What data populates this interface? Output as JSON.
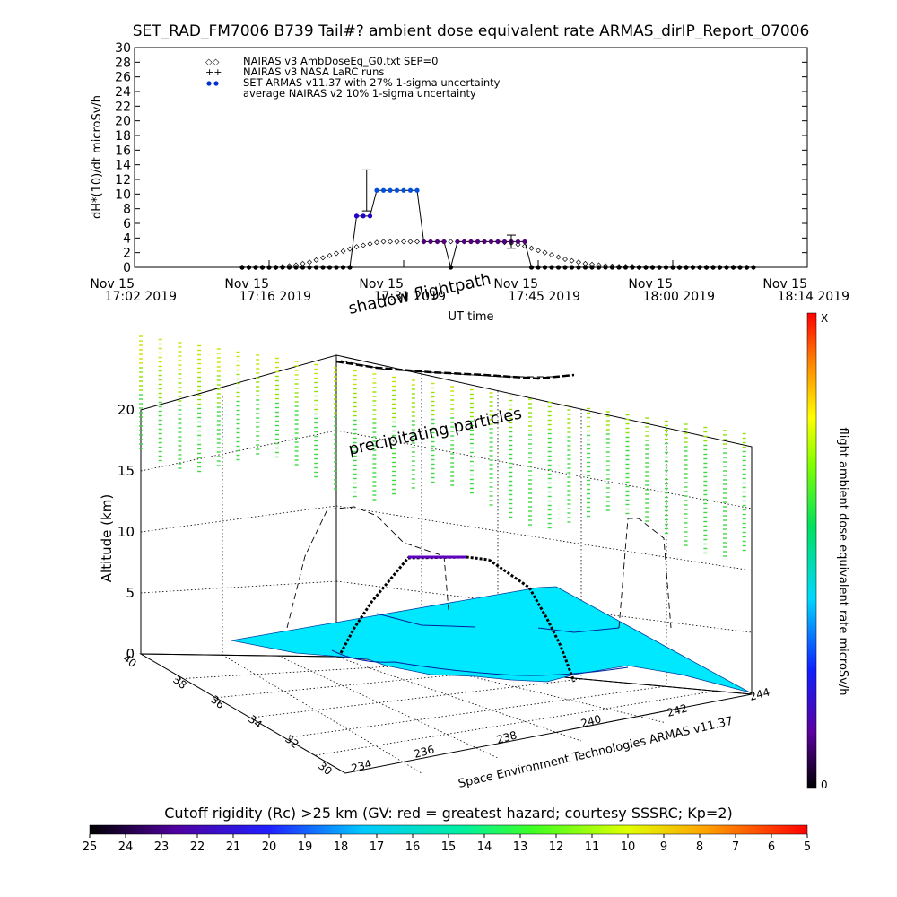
{
  "title": "SET_RAD_FM7006  B739 Tail#? ambient dose equivalent rate ARMAS_dirIP_Report_07006",
  "chart_data": [
    {
      "type": "line",
      "ylabel": "dH*(10)/dt microSv/h",
      "xlabel": "UT time",
      "ylim": [
        0,
        30
      ],
      "yticks": [
        0,
        2,
        4,
        6,
        8,
        10,
        12,
        14,
        16,
        18,
        20,
        22,
        24,
        26,
        28,
        30
      ],
      "xticks": [
        {
          "l1": "Nov 15",
          "l2": "17:02 2019"
        },
        {
          "l1": "Nov 15",
          "l2": "17:16 2019"
        },
        {
          "l1": "Nov 15",
          "l2": "17:31 2019"
        },
        {
          "l1": "Nov 15",
          "l2": "17:45 2019"
        },
        {
          "l1": "Nov 15",
          "l2": "18:00 2019"
        },
        {
          "l1": "Nov 15",
          "l2": "18:14 2019"
        }
      ],
      "legend": [
        {
          "label": "NAIRAS v3 AmbDoseEq_G0.txt SEP=0",
          "marker": "diamond"
        },
        {
          "label": "NAIRAS v3 NASA LaRC runs",
          "marker": "plus"
        },
        {
          "label": "SET ARMAS v11.37 with 27% 1-sigma uncertainty",
          "marker": "dot"
        },
        {
          "label": "average NAIRAS v2 10% 1-sigma uncertainty",
          "marker": "none"
        }
      ],
      "series": [
        {
          "name": "SET ARMAS v11.37 with 27% 1-sigma uncertainty",
          "x": [
            0.16,
            0.17,
            0.18,
            0.19,
            0.2,
            0.21,
            0.22,
            0.23,
            0.24,
            0.25,
            0.26,
            0.27,
            0.28,
            0.29,
            0.3,
            0.31,
            0.32,
            0.33,
            0.34,
            0.35,
            0.36,
            0.37,
            0.38,
            0.39,
            0.4,
            0.41,
            0.42,
            0.43,
            0.44,
            0.45,
            0.46,
            0.47,
            0.48,
            0.49,
            0.5,
            0.51,
            0.52,
            0.53,
            0.54,
            0.55,
            0.56,
            0.57,
            0.58,
            0.59,
            0.6,
            0.61,
            0.62,
            0.63,
            0.64,
            0.65,
            0.66,
            0.67,
            0.68,
            0.69,
            0.7,
            0.71,
            0.72,
            0.73,
            0.74,
            0.75,
            0.76,
            0.77,
            0.78,
            0.79,
            0.8,
            0.81,
            0.82,
            0.83,
            0.84,
            0.85,
            0.86,
            0.87,
            0.88,
            0.89,
            0.9,
            0.91,
            0.92
          ],
          "values": [
            0,
            0,
            0,
            0,
            0,
            0,
            0,
            0,
            0,
            0,
            0,
            0,
            0,
            0,
            0,
            0,
            0,
            7,
            7,
            7,
            10.5,
            10.5,
            10.5,
            10.5,
            10.5,
            10.5,
            10.5,
            3.5,
            3.5,
            3.5,
            3.5,
            0,
            3.5,
            3.5,
            3.5,
            3.5,
            3.5,
            3.5,
            3.5,
            3.5,
            3.5,
            3.5,
            3.5,
            0,
            0,
            0,
            0,
            0,
            0,
            0,
            0,
            0,
            0,
            0,
            0,
            0,
            0,
            0,
            0,
            0,
            0,
            0,
            0,
            0,
            0,
            0,
            0,
            0,
            0,
            0,
            0,
            0,
            0,
            0,
            0,
            0,
            0
          ]
        },
        {
          "name": "NAIRAS v3 AmbDoseEq_G0.txt SEP=0",
          "x": [
            0.16,
            0.17,
            0.18,
            0.19,
            0.2,
            0.21,
            0.22,
            0.23,
            0.24,
            0.25,
            0.26,
            0.27,
            0.28,
            0.29,
            0.3,
            0.31,
            0.32,
            0.33,
            0.34,
            0.35,
            0.36,
            0.37,
            0.38,
            0.39,
            0.4,
            0.41,
            0.42,
            0.43,
            0.44,
            0.45,
            0.46,
            0.47,
            0.48,
            0.49,
            0.5,
            0.51,
            0.52,
            0.53,
            0.54,
            0.55,
            0.56,
            0.57,
            0.58,
            0.59,
            0.6,
            0.61,
            0.62,
            0.63,
            0.64,
            0.65,
            0.66,
            0.67,
            0.68,
            0.69,
            0.7,
            0.71,
            0.72,
            0.73,
            0.74,
            0.75,
            0.76,
            0.77,
            0.78,
            0.79,
            0.8,
            0.81,
            0.82,
            0.83,
            0.84,
            0.85,
            0.86,
            0.87,
            0.88,
            0.89,
            0.9,
            0.91,
            0.92
          ],
          "values": [
            0,
            0,
            0,
            0,
            0,
            0,
            0.1,
            0.2,
            0.3,
            0.5,
            0.7,
            1.0,
            1.3,
            1.6,
            1.9,
            2.2,
            2.5,
            2.8,
            3.0,
            3.2,
            3.4,
            3.5,
            3.5,
            3.5,
            3.5,
            3.5,
            3.5,
            3.5,
            3.5,
            3.5,
            3.5,
            3.5,
            3.5,
            3.5,
            3.5,
            3.5,
            3.5,
            3.5,
            3.5,
            3.4,
            3.3,
            3.1,
            2.9,
            2.6,
            2.3,
            2.0,
            1.7,
            1.4,
            1.1,
            0.9,
            0.7,
            0.5,
            0.4,
            0.3,
            0.2,
            0.15,
            0.1,
            0.1,
            0.1,
            0,
            0,
            0,
            0,
            0,
            0,
            0,
            0,
            0,
            0,
            0,
            0,
            0,
            0,
            0,
            0,
            0,
            0
          ]
        }
      ],
      "error_bars": [
        {
          "x": 0.345,
          "y": 10.5,
          "low": 7.7,
          "high": 13.3
        },
        {
          "x": 0.56,
          "y": 3.5,
          "low": 2.6,
          "high": 4.4
        }
      ]
    },
    {
      "type": "scatter",
      "zlabel": "Altitude (km)",
      "zticks": [
        "0",
        "5",
        "10",
        "15",
        "20"
      ],
      "lat_ticks": [
        "30",
        "32",
        "34",
        "36",
        "38",
        "40"
      ],
      "lon_ticks": [
        "234",
        "236",
        "238",
        "240",
        "242",
        "244"
      ],
      "annotations": {
        "shadow": "shadow flightpath",
        "particles": "precipitating particles",
        "credit": "Space Environment Technologies ARMAS v11.37"
      },
      "right_colorbar": {
        "label": "flight ambient dose equivalent rate microSv/h",
        "top": "X",
        "bottom": "0"
      }
    },
    {
      "type": "heatmap",
      "title": "Cutoff rigidity (Rc) >25 km (GV: red = greatest hazard; courtesy SSSRC; Kp=2)",
      "ticks": [
        "25",
        "24",
        "23",
        "22",
        "21",
        "20",
        "19",
        "18",
        "17",
        "16",
        "15",
        "14",
        "13",
        "12",
        "11",
        "10",
        "9",
        "8",
        "7",
        "6",
        "5"
      ],
      "colors": [
        "#000000",
        "#3a0050",
        "#5a00a0",
        "#2000ff",
        "#0080ff",
        "#00e0ff",
        "#00ff80",
        "#80ff00",
        "#ffff00",
        "#ff8000",
        "#ff0000"
      ]
    }
  ]
}
